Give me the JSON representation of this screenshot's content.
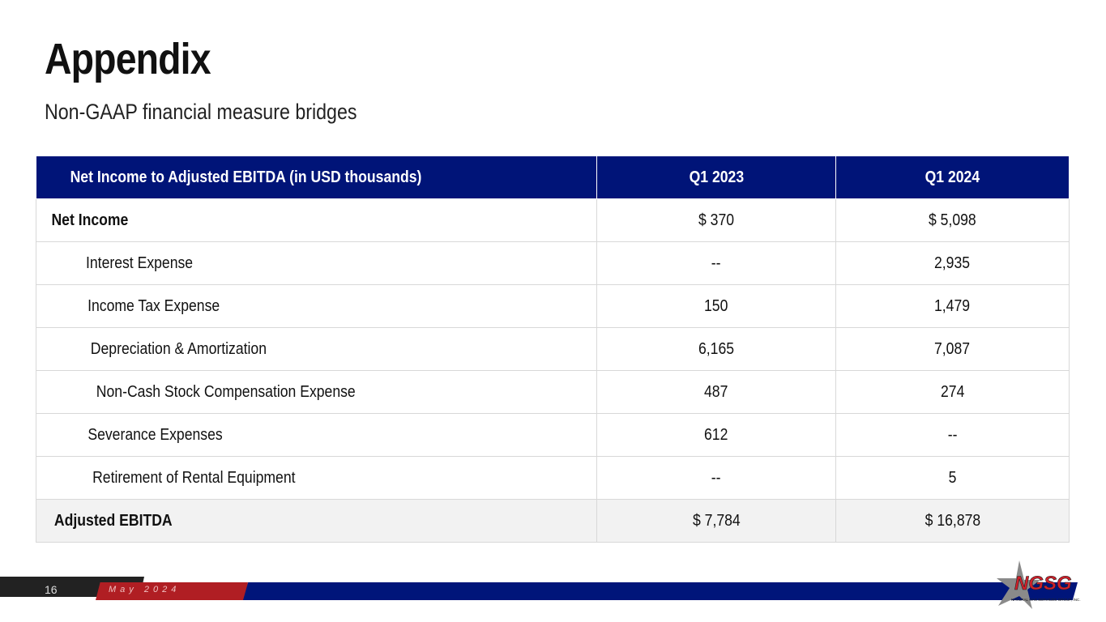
{
  "header": {
    "title": "Appendix",
    "subtitle": "Non-GAAP financial measure bridges"
  },
  "table": {
    "columns": [
      "Net Income to Adjusted EBITDA (in USD thousands)",
      "Q1 2023",
      "Q1 2024"
    ],
    "rows": [
      {
        "label": "Net Income",
        "q1_2023": "$ 370",
        "q1_2024": "$ 5,098"
      },
      {
        "label": "Interest Expense",
        "q1_2023": "--",
        "q1_2024": "2,935"
      },
      {
        "label": "Income Tax Expense",
        "q1_2023": "150",
        "q1_2024": "1,479"
      },
      {
        "label": "Depreciation & Amortization",
        "q1_2023": "6,165",
        "q1_2024": "7,087"
      },
      {
        "label": "Non-Cash Stock Compensation Expense",
        "q1_2023": "487",
        "q1_2024": "274"
      },
      {
        "label": "Severance Expenses",
        "q1_2023": "612",
        "q1_2024": "--"
      },
      {
        "label": "Retirement of Rental Equipment",
        "q1_2023": "--",
        "q1_2024": "5"
      },
      {
        "label": "Adjusted EBITDA",
        "q1_2023": "$ 7,784",
        "q1_2024": "$ 16,878"
      }
    ]
  },
  "footer": {
    "page_number": "16",
    "date": "May 2024"
  },
  "logo": {
    "text": "NGSG",
    "tagline": "NATURAL GAS SERVICES GROUP, INC."
  },
  "colors": {
    "header_blue": "#001478",
    "accent_red": "#b01e23",
    "dark": "#222222"
  }
}
